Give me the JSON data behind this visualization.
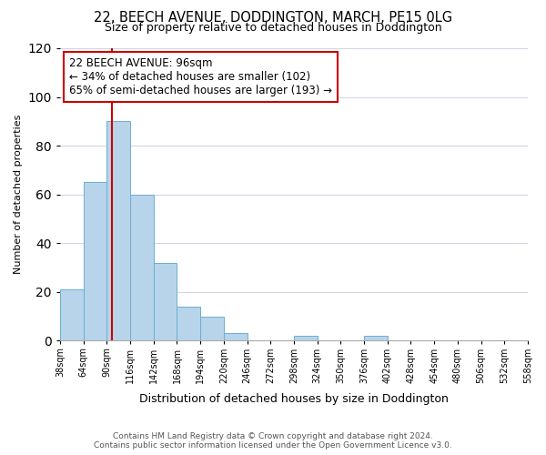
{
  "title": "22, BEECH AVENUE, DODDINGTON, MARCH, PE15 0LG",
  "subtitle": "Size of property relative to detached houses in Doddington",
  "xlabel": "Distribution of detached houses by size in Doddington",
  "ylabel": "Number of detached properties",
  "bin_edges": [
    38,
    64,
    90,
    116,
    142,
    168,
    194,
    220,
    246,
    272,
    298,
    324,
    350,
    376,
    402,
    428,
    454,
    480,
    506,
    532,
    558
  ],
  "bar_heights": [
    21,
    65,
    90,
    60,
    32,
    14,
    10,
    3,
    0,
    0,
    2,
    0,
    0,
    2,
    0,
    0,
    0,
    0,
    0,
    0
  ],
  "bar_color": "#b8d4ea",
  "bar_edge_color": "#6aaed6",
  "vline_x": 96,
  "vline_color": "#cc0000",
  "annotation_text": "22 BEECH AVENUE: 96sqm\n← 34% of detached houses are smaller (102)\n65% of semi-detached houses are larger (193) →",
  "annotation_box_edgecolor": "#cc0000",
  "annotation_box_facecolor": "#ffffff",
  "ylim": [
    0,
    120
  ],
  "yticks": [
    0,
    20,
    40,
    60,
    80,
    100,
    120
  ],
  "tick_labels": [
    "38sqm",
    "64sqm",
    "90sqm",
    "116sqm",
    "142sqm",
    "168sqm",
    "194sqm",
    "220sqm",
    "246sqm",
    "272sqm",
    "298sqm",
    "324sqm",
    "350sqm",
    "376sqm",
    "402sqm",
    "428sqm",
    "454sqm",
    "480sqm",
    "506sqm",
    "532sqm",
    "558sqm"
  ],
  "footer_text": "Contains HM Land Registry data © Crown copyright and database right 2024.\nContains public sector information licensed under the Open Government Licence v3.0.",
  "background_color": "#ffffff",
  "grid_color": "#d0d8e4"
}
